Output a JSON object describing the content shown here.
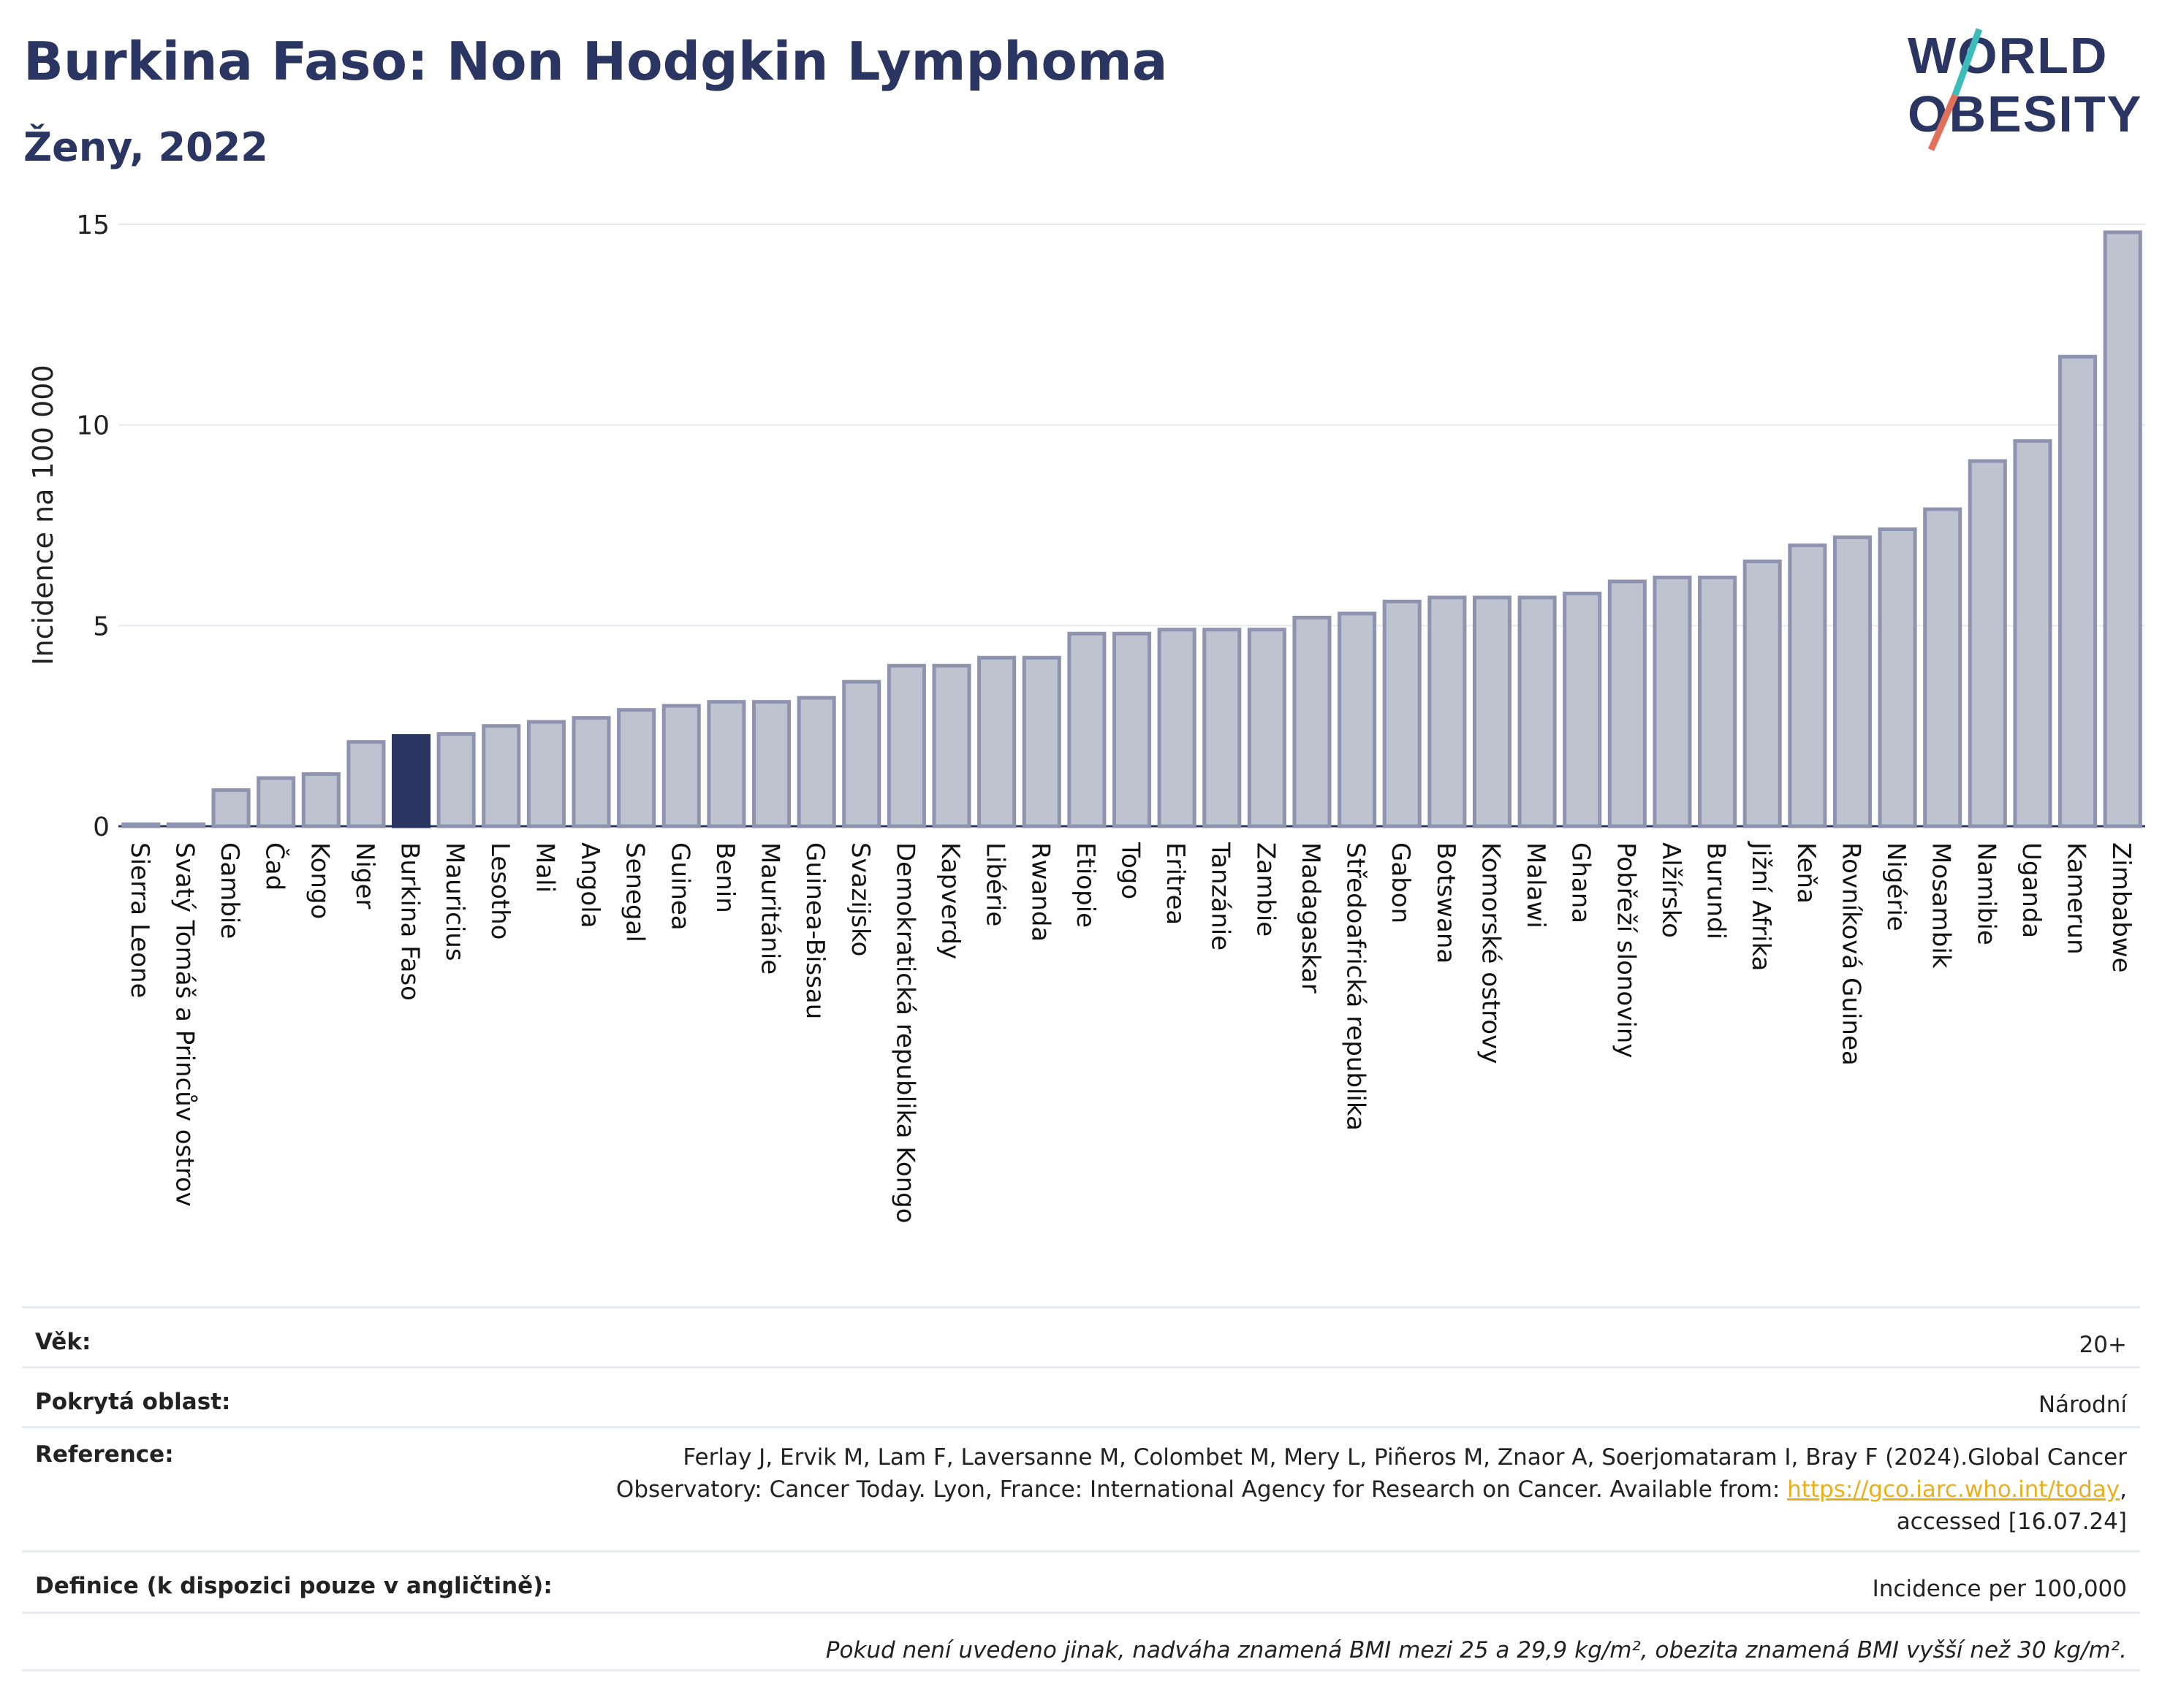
{
  "header": {
    "title": "Burkina Faso: Non Hodgkin Lymphoma",
    "subtitle": "Ženy, 2022"
  },
  "logo": {
    "line1": "WORLD",
    "line2": "OBESITY"
  },
  "colors": {
    "highlight": "#2a3561",
    "bar": "#bfc3d0",
    "bar_stroke": "#8e94b0",
    "title": "#2a3561"
  },
  "chart_data": {
    "type": "bar",
    "ylabel": "Incidence na 100 000",
    "ylim": [
      0,
      15
    ],
    "yticks": [
      0,
      5,
      10,
      15
    ],
    "grid": true,
    "highlight": "Burkina Faso",
    "categories": [
      "Sierra Leone",
      "Svatý Tomáš a Princův ostrov",
      "Gambie",
      "Čad",
      "Kongo",
      "Niger",
      "Burkina Faso",
      "Mauricius",
      "Lesotho",
      "Mali",
      "Angola",
      "Senegal",
      "Guinea",
      "Benin",
      "Mauritánie",
      "Guinea-Bissau",
      "Svazijsko",
      "Demokratická republika Kongo",
      "Kapverdy",
      "Libérie",
      "Rwanda",
      "Etiopie",
      "Togo",
      "Eritrea",
      "Tanzánie",
      "Zambie",
      "Madagaskar",
      "Středoafrická republika",
      "Gabon",
      "Botswana",
      "Komorské ostrovy",
      "Malawi",
      "Ghana",
      "Pobřeží slonoviny",
      "Alžírsko",
      "Burundi",
      "Jižní Afrika",
      "Keňa",
      "Rovníková Guinea",
      "Nigérie",
      "Mosambik",
      "Namibie",
      "Uganda",
      "Kamerun",
      "Zimbabwe"
    ],
    "values": [
      0.05,
      0.05,
      0.9,
      1.2,
      1.3,
      2.1,
      2.25,
      2.3,
      2.5,
      2.6,
      2.7,
      2.9,
      3.0,
      3.1,
      3.1,
      3.2,
      3.6,
      4.0,
      4.0,
      4.2,
      4.2,
      4.8,
      4.8,
      4.9,
      4.9,
      4.9,
      5.2,
      5.3,
      5.6,
      5.7,
      5.7,
      5.7,
      5.8,
      6.1,
      6.2,
      6.2,
      6.6,
      7.0,
      7.2,
      7.4,
      7.9,
      9.1,
      9.6,
      11.7,
      14.8
    ]
  },
  "meta": {
    "age_label": "Věk:",
    "age_value": "20+",
    "area_label": "Pokrytá oblast:",
    "area_value": "Národní",
    "ref_label": "Reference:",
    "ref_text1": "Ferlay J, Ervik M, Lam F, Laversanne M, Colombet M, Mery L, Piñeros M, Znaor A, Soerjomataram I, Bray F (2024).Global Cancer",
    "ref_text2": "Observatory: Cancer Today. Lyon, France: International Agency for Research on Cancer. Available from: ",
    "ref_link": "https://gco.iarc.who.int/today",
    "ref_text3": ",",
    "ref_text4": "accessed [16.07.24]",
    "def_label": "Definice (k dispozici pouze v angličtině):",
    "def_value": "Incidence per 100,000",
    "note": "Pokud není uvedeno jinak, nadváha znamená BMI mezi 25 a 29,9 kg/m², obezita znamená BMI vyšší než 30 kg/m²."
  }
}
